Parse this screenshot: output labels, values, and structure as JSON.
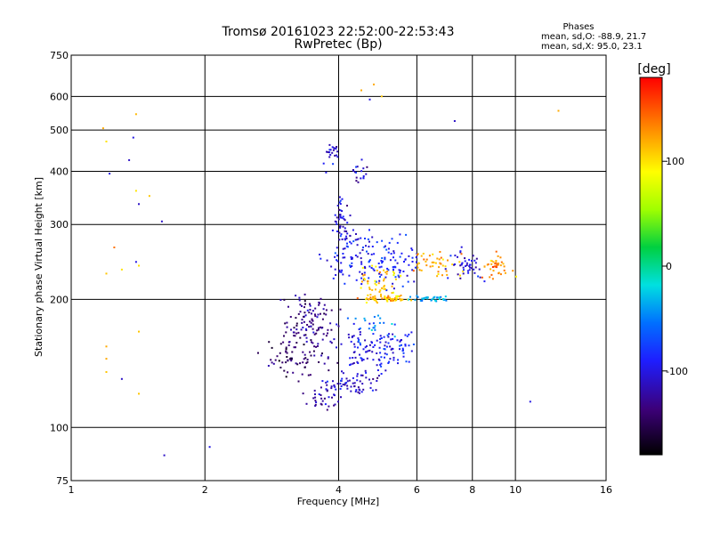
{
  "chart_data": {
    "type": "scatter",
    "title": "Tromsø 20161023 22:52:00-22:53:43",
    "subtitle": "RwPretec (Bp)",
    "xlabel": "Frequency [MHz]",
    "ylabel": "Stationary phase Virtual Height [km]",
    "x_scale": "log",
    "y_scale": "log",
    "xlim": [
      1,
      16
    ],
    "ylim": [
      75,
      750
    ],
    "x_ticks": [
      "1",
      "2",
      "4",
      "6",
      "8",
      "10",
      "16"
    ],
    "y_ticks": [
      "75",
      "100",
      "200",
      "300",
      "400",
      "500",
      "600",
      "750"
    ],
    "grid": true,
    "stats": {
      "heading": "Phases",
      "line_o": "mean, sd,O: -88.9, 21.7",
      "line_x": "mean, sd,X:  95.0, 23.1"
    },
    "colorbar": {
      "label": "[deg]",
      "range": [
        -180,
        180
      ],
      "ticks": [
        "100",
        "0",
        "-100"
      ],
      "tick_values": [
        100,
        0,
        -100
      ]
    },
    "point_groups": [
      {
        "f": [
          1.18,
          1.4,
          1.2,
          1.38,
          1.35,
          1.22,
          1.4,
          1.42,
          1.5,
          1.6,
          1.25,
          1.3,
          1.2,
          1.2,
          1.4,
          1.42,
          1.3,
          1.2,
          1.42,
          1.2,
          1.42,
          1.62,
          2.05
        ],
        "h": [
          505,
          545,
          470,
          480,
          425,
          395,
          360,
          335,
          350,
          305,
          265,
          235,
          230,
          145,
          245,
          240,
          130,
          135,
          168,
          155,
          120,
          86,
          90
        ],
        "phase": [
          120,
          115,
          100,
          -100,
          -110,
          -100,
          100,
          -110,
          110,
          -110,
          140,
          100,
          110,
          120,
          -100,
          100,
          -110,
          110,
          110,
          120,
          110,
          -110,
          -100
        ],
        "n": 1,
        "sf": 0.01,
        "sh": 0.02
      },
      {
        "f": [
          10.8
        ],
        "h": [
          115
        ],
        "phase": [
          -100
        ],
        "n": 1,
        "sf": 0.01,
        "sh": 0.02
      },
      {
        "f": [
          4.8,
          5.0,
          4.5,
          4.7,
          7.3,
          12.5
        ],
        "h": [
          640,
          600,
          620,
          590,
          525,
          555
        ],
        "phase": [
          120,
          110,
          120,
          -100,
          -110,
          120
        ],
        "n": 1,
        "sf": 0.02,
        "sh": 0.03
      },
      {
        "f": [
          3.85
        ],
        "h": [
          440
        ],
        "phase": [
          -110
        ],
        "n": 22,
        "sf": 0.025,
        "sh": 0.04
      },
      {
        "f": [
          4.45
        ],
        "h": [
          400
        ],
        "phase": [
          -110
        ],
        "n": 18,
        "sf": 0.03,
        "sh": 0.03
      },
      {
        "f": [
          4.05
        ],
        "h": [
          300
        ],
        "phase": [
          -100
        ],
        "n": 45,
        "sf": 0.02,
        "sh": 0.08
      },
      {
        "f": [
          4.4
        ],
        "h": [
          250
        ],
        "phase": [
          -95
        ],
        "n": 90,
        "sf": 0.08,
        "sh": 0.08
      },
      {
        "f": [
          5.3
        ],
        "h": [
          240
        ],
        "phase": [
          -90
        ],
        "n": 70,
        "sf": 0.08,
        "sh": 0.07
      },
      {
        "f": [
          4.9
        ],
        "h": [
          220
        ],
        "phase": [
          110
        ],
        "n": 45,
        "sf": 0.06,
        "sh": 0.05
      },
      {
        "f": [
          5.1
        ],
        "h": [
          201
        ],
        "phase": [
          115
        ],
        "n": 60,
        "sf": 0.06,
        "sh": 0.01
      },
      {
        "f": [
          6.4
        ],
        "h": [
          201
        ],
        "phase": [
          -30
        ],
        "n": 35,
        "sf": 0.06,
        "sh": 0.01
      },
      {
        "f": [
          6.7
        ],
        "h": [
          240
        ],
        "phase": [
          120
        ],
        "n": 45,
        "sf": 0.08,
        "sh": 0.04
      },
      {
        "f": [
          7.8
        ],
        "h": [
          240
        ],
        "phase": [
          -100
        ],
        "n": 45,
        "sf": 0.06,
        "sh": 0.04
      },
      {
        "f": [
          9.0
        ],
        "h": [
          238
        ],
        "phase": [
          130
        ],
        "n": 40,
        "sf": 0.05,
        "sh": 0.03
      },
      {
        "f": [
          3.5
        ],
        "h": [
          175
        ],
        "phase": [
          -130
        ],
        "n": 110,
        "sf": 0.07,
        "sh": 0.08
      },
      {
        "f": [
          3.2
        ],
        "h": [
          145
        ],
        "phase": [
          -145
        ],
        "n": 70,
        "sf": 0.08,
        "sh": 0.07
      },
      {
        "f": [
          4.2
        ],
        "h": [
          125
        ],
        "phase": [
          -110
        ],
        "n": 60,
        "sf": 0.09,
        "sh": 0.03
      },
      {
        "f": [
          4.6
        ],
        "h": [
          150
        ],
        "phase": [
          -100
        ],
        "n": 90,
        "sf": 0.08,
        "sh": 0.08
      },
      {
        "f": [
          5.4
        ],
        "h": [
          155
        ],
        "phase": [
          -90
        ],
        "n": 50,
        "sf": 0.05,
        "sh": 0.06
      },
      {
        "f": [
          4.8
        ],
        "h": [
          175
        ],
        "phase": [
          -50
        ],
        "n": 20,
        "sf": 0.08,
        "sh": 0.05
      },
      {
        "f": [
          3.7
        ],
        "h": [
          115
        ],
        "phase": [
          -120
        ],
        "n": 25,
        "sf": 0.05,
        "sh": 0.03
      }
    ]
  }
}
